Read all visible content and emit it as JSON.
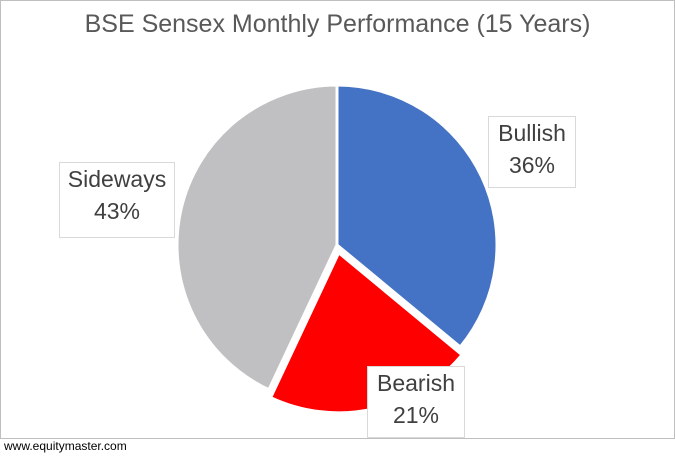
{
  "chart_data": {
    "type": "pie",
    "title": "BSE Sensex Monthly Performance (15 Years)",
    "slices": [
      {
        "label": "Bullish",
        "value": 36,
        "value_label": "36%",
        "color": "#4472C4"
      },
      {
        "label": "Bearish",
        "value": 21,
        "value_label": "21%",
        "color": "#FF0000"
      },
      {
        "label": "Sideways",
        "value": 43,
        "value_label": "43%",
        "color": "#C0BFC2"
      }
    ],
    "start_position": "top, clockwise",
    "legend": "none"
  },
  "footer": {
    "source": "www.equitymaster.com"
  }
}
